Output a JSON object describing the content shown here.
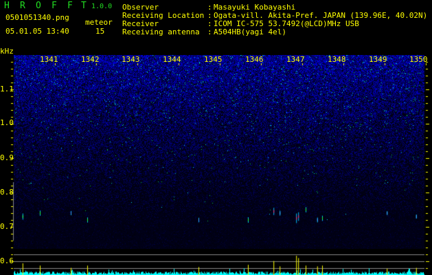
{
  "header": {
    "title_letters": [
      "H",
      "R",
      "O",
      "F",
      "F",
      "T"
    ],
    "version": "1.0.0",
    "filename": "0501051340.png",
    "datetime": "05.01.05 13:40",
    "meteor_label": "meteor",
    "meteor_count": "15"
  },
  "info": [
    {
      "label": "Observer",
      "sep": ":",
      "value": "Masayuki Kobayashi"
    },
    {
      "label": "Receiving Location",
      "sep": ":",
      "value": "Ogata-vill. Akita-Pref. JAPAN (139.96E, 40.02N)"
    },
    {
      "label": "Receiver",
      "sep": ":",
      "value": "ICOM IC-575 53.7492(@LCD)MHz USB"
    },
    {
      "label": "Receiving antenna",
      "sep": ":",
      "value": "A504HB(yagi 4el)"
    }
  ],
  "axis": {
    "y_unit": "kHz",
    "y_ticks": [
      "1.1",
      "1.0",
      "0.9",
      "0.8",
      "0.7",
      "0.6"
    ],
    "x_ticks": [
      "1341",
      "1342",
      "1343",
      "1344",
      "1345",
      "1346",
      "1347",
      "1348",
      "1349",
      "1350"
    ]
  },
  "colors": {
    "text": "#ffff00",
    "title": "#22dd22",
    "noise": "#0000ff",
    "echo_bar": "#ffff00",
    "noise_bar": "#00ffff",
    "grid": "#888888"
  },
  "meteor_echoes": [
    {
      "time": 1340.38,
      "freq": 0.73,
      "strength": 0.5
    },
    {
      "time": 1340.8,
      "freq": 0.74,
      "strength": 0.35
    },
    {
      "time": 1341.55,
      "freq": 0.74,
      "strength": 0.2
    },
    {
      "time": 1341.95,
      "freq": 0.72,
      "strength": 0.35
    },
    {
      "time": 1344.65,
      "freq": 0.72,
      "strength": 0.25
    },
    {
      "time": 1345.85,
      "freq": 0.72,
      "strength": 0.4
    },
    {
      "time": 1346.47,
      "freq": 0.745,
      "strength": 0.65
    },
    {
      "time": 1346.62,
      "freq": 0.74,
      "strength": 0.3
    },
    {
      "time": 1347.02,
      "freq": 0.725,
      "strength": 1.0
    },
    {
      "time": 1347.07,
      "freq": 0.73,
      "strength": 0.85
    },
    {
      "time": 1347.25,
      "freq": 0.75,
      "strength": 0.35
    },
    {
      "time": 1347.53,
      "freq": 0.72,
      "strength": 0.3
    },
    {
      "time": 1347.65,
      "freq": 0.725,
      "strength": 0.35
    },
    {
      "time": 1349.22,
      "freq": 0.74,
      "strength": 0.15
    },
    {
      "time": 1349.93,
      "freq": 0.73,
      "strength": 0.2
    }
  ]
}
